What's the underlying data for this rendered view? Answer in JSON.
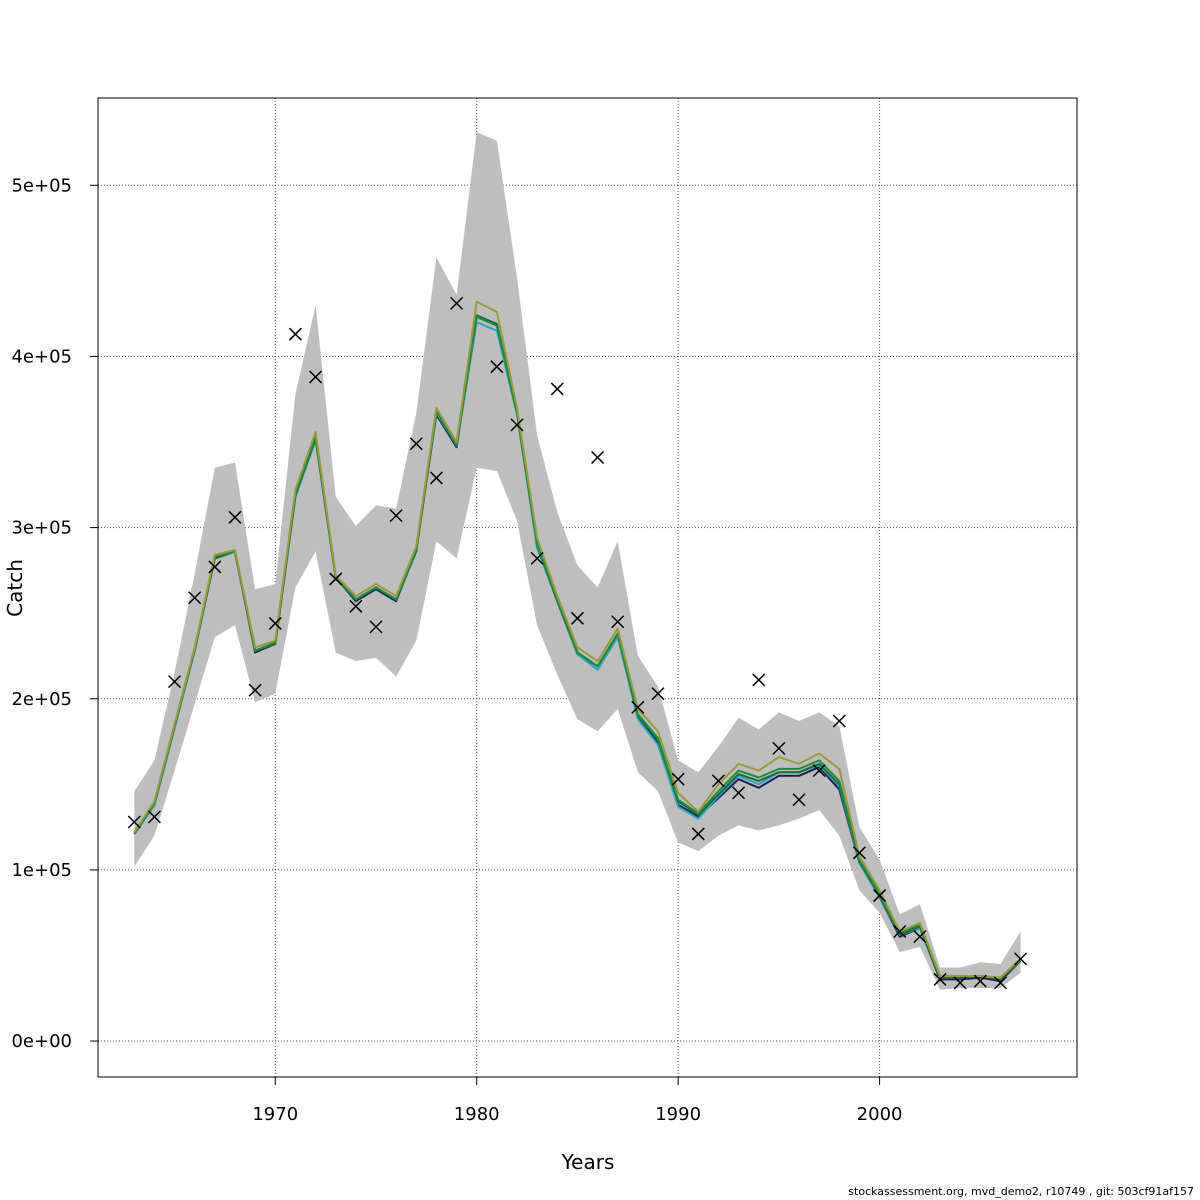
{
  "chart_data": {
    "type": "line",
    "xlabel": "Years",
    "ylabel": "Catch",
    "xlim": [
      1961.2,
      2009.8
    ],
    "ylim": [
      -21000,
      551000
    ],
    "xticks": [
      1970,
      1980,
      1990,
      2000
    ],
    "yticks": [
      0,
      100000,
      200000,
      300000,
      400000,
      500000
    ],
    "ytick_labels": [
      "0e+00",
      "1e+05",
      "2e+05",
      "3e+05",
      "4e+05",
      "5e+05"
    ],
    "grid": true,
    "years": [
      1963,
      1964,
      1965,
      1966,
      1967,
      1968,
      1969,
      1970,
      1971,
      1972,
      1973,
      1974,
      1975,
      1976,
      1977,
      1978,
      1979,
      1980,
      1981,
      1982,
      1983,
      1984,
      1985,
      1986,
      1987,
      1988,
      1989,
      1990,
      1991,
      1992,
      1993,
      1994,
      1995,
      1996,
      1997,
      1998,
      1999,
      2000,
      2001,
      2002,
      2003,
      2004,
      2005,
      2006,
      2007
    ],
    "confidence_band": {
      "color": "#bebebe",
      "upper": [
        146000,
        164000,
        215000,
        273000,
        335000,
        338000,
        264000,
        267000,
        378000,
        430000,
        318000,
        301000,
        313000,
        311000,
        367000,
        458000,
        436000,
        531000,
        526000,
        446000,
        354000,
        309000,
        278000,
        265000,
        292000,
        225000,
        207000,
        164000,
        157000,
        172000,
        189000,
        182000,
        192000,
        187000,
        192000,
        184000,
        125000,
        106000,
        74000,
        80000,
        43000,
        43000,
        46000,
        45000,
        64000
      ],
      "lower": [
        102000,
        120000,
        158000,
        197000,
        236000,
        243000,
        198000,
        203000,
        265000,
        286000,
        227000,
        222000,
        224000,
        213000,
        234000,
        292000,
        282000,
        335000,
        333000,
        304000,
        243000,
        214000,
        188000,
        181000,
        194000,
        157000,
        146000,
        116000,
        111000,
        120000,
        126000,
        123000,
        126000,
        130000,
        135000,
        120000,
        88000,
        75000,
        52000,
        55000,
        30000,
        31000,
        31000,
        31000,
        40000
      ]
    },
    "series": [
      {
        "color": "#1b1b5e",
        "values": [
          121000,
          138000,
          183000,
          228000,
          282000,
          286000,
          227000,
          232000,
          318000,
          352000,
          271000,
          257000,
          264000,
          257000,
          287000,
          366000,
          347000,
          424000,
          418000,
          368000,
          290000,
          257000,
          226000,
          219000,
          237000,
          189000,
          174000,
          138000,
          131000,
          142000,
          153000,
          148000,
          155000,
          155000,
          160000,
          147000,
          104000,
          84000,
          61000,
          66000,
          36000,
          36000,
          37000,
          35000,
          47000
        ]
      },
      {
        "color": "#2aa6c0",
        "values": [
          121000,
          138000,
          183000,
          228000,
          282000,
          286000,
          228000,
          233000,
          318000,
          351000,
          271000,
          258000,
          265000,
          258000,
          287000,
          367000,
          348000,
          420000,
          415000,
          366000,
          288000,
          257000,
          226000,
          217000,
          236000,
          188000,
          173000,
          137000,
          130000,
          143000,
          155000,
          150000,
          157000,
          157000,
          161000,
          149000,
          104000,
          84000,
          62000,
          66000,
          37000,
          37000,
          38000,
          36000,
          47000
        ]
      },
      {
        "color": "#1e6b33",
        "values": [
          121000,
          139000,
          184000,
          229000,
          282000,
          286000,
          228000,
          232000,
          319000,
          352000,
          271000,
          258000,
          265000,
          258000,
          286000,
          368000,
          348000,
          424000,
          419000,
          367000,
          290000,
          257000,
          227000,
          219000,
          238000,
          190000,
          176000,
          140000,
          132000,
          144000,
          156000,
          152000,
          157000,
          157000,
          162000,
          150000,
          105000,
          85000,
          62000,
          67000,
          37000,
          37000,
          38000,
          36000,
          47000
        ]
      },
      {
        "color": "#1a8f3a",
        "values": [
          121000,
          139000,
          184000,
          229000,
          283000,
          286000,
          228000,
          233000,
          320000,
          353000,
          271000,
          258000,
          265000,
          258000,
          287000,
          368000,
          348000,
          423000,
          418000,
          367000,
          290000,
          258000,
          227000,
          219000,
          238000,
          191000,
          177000,
          141000,
          133000,
          146000,
          158000,
          154000,
          159000,
          159000,
          164000,
          152000,
          106000,
          86000,
          63000,
          68000,
          38000,
          38000,
          38000,
          37000,
          48000
        ]
      },
      {
        "color": "#9a9a38",
        "values": [
          122000,
          140000,
          185000,
          230000,
          284000,
          287000,
          230000,
          234000,
          322000,
          356000,
          272000,
          260000,
          267000,
          260000,
          289000,
          370000,
          350000,
          432000,
          426000,
          370000,
          294000,
          260000,
          230000,
          222000,
          241000,
          194000,
          181000,
          145000,
          134000,
          150000,
          162000,
          158000,
          166000,
          162000,
          168000,
          159000,
          108000,
          88000,
          64000,
          69000,
          38000,
          38000,
          38000,
          37000,
          48000
        ]
      }
    ],
    "observations": {
      "marker": "x",
      "values": [
        128000,
        131000,
        210000,
        259000,
        277000,
        306000,
        205000,
        244000,
        413000,
        388000,
        270000,
        254000,
        242000,
        307000,
        349000,
        329000,
        431000,
        null,
        394000,
        360000,
        282000,
        381000,
        247000,
        341000,
        245000,
        195000,
        203000,
        153000,
        121000,
        152000,
        145000,
        211000,
        171000,
        141000,
        158000,
        187000,
        110000,
        85000,
        64000,
        61000,
        36000,
        34000,
        35000,
        34000,
        48000
      ]
    }
  },
  "footer_text": "stockassessment.org, mvd_demo2, r10749 , git: 503cf91af157"
}
